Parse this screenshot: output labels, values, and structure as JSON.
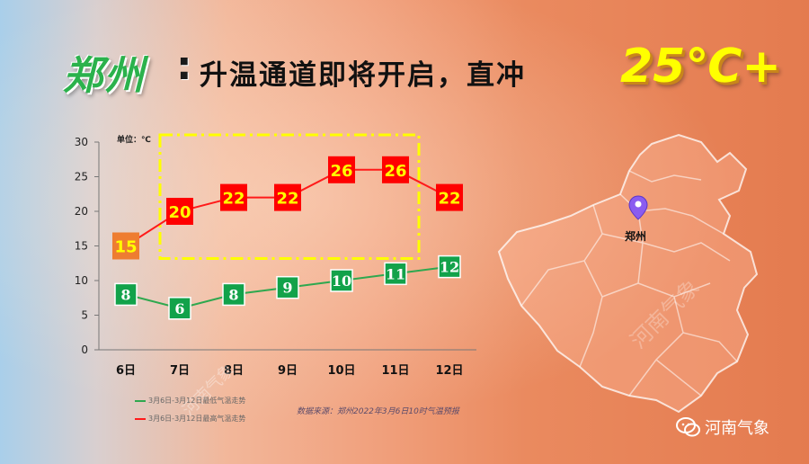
{
  "title": {
    "city": "郑州",
    "colon": ":",
    "main": "升温通道即将开启，直冲",
    "temp": "25℃+"
  },
  "colors": {
    "high_line": "#ff1a1a",
    "low_line": "#2fa84f",
    "high_box": "#ff0000",
    "first_high_box": "#ee7d31",
    "low_box": "#12a24a",
    "label_text": "#ffff00",
    "highlight_box": "#ffff00"
  },
  "chart_data": {
    "type": "line",
    "unit_label": "单位：℃",
    "categories": [
      "6日",
      "7日",
      "8日",
      "9日",
      "10日",
      "11日",
      "12日"
    ],
    "series": [
      {
        "name": "3月6日-3月12日最高气温走势",
        "values": [
          15,
          20,
          22,
          22,
          26,
          26,
          22
        ]
      },
      {
        "name": "3月6日-3月12日最低气温走势",
        "values": [
          8,
          6,
          8,
          9,
          10,
          11,
          12
        ]
      }
    ],
    "ylim": [
      0,
      30
    ],
    "yticks": [
      0,
      5,
      10,
      15,
      20,
      25,
      30
    ],
    "grid": false,
    "legend_position": "bottom-left"
  },
  "source_text": "数据来源：郑州2022年3月6日10时气温预报",
  "map": {
    "city_label": "郑州",
    "pin_icon": "location-pin-icon"
  },
  "watermark": "河南气象",
  "brand": {
    "icon": "wechat-icon",
    "name": "河南气象"
  }
}
